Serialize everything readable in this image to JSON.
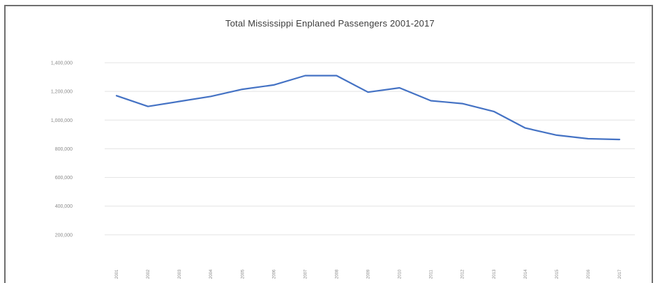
{
  "chart_data": {
    "type": "line",
    "title": "Total Mississippi Enplaned Passengers 2001-2017",
    "xlabel": "",
    "ylabel": "",
    "ylim": [
      0,
      1400000
    ],
    "y_ticks": [
      "200,000",
      "400,000",
      "600,000",
      "800,000",
      "1,000,000",
      "1,200,000",
      "1,400,000"
    ],
    "y_tick_values": [
      200000,
      400000,
      600000,
      800000,
      1000000,
      1200000,
      1400000
    ],
    "x": [
      "2001",
      "2002",
      "2003",
      "2004",
      "2005",
      "2006",
      "2007",
      "2008",
      "2009",
      "2010",
      "2011",
      "2012",
      "2013",
      "2014",
      "2015",
      "2016",
      "2017"
    ],
    "series": [
      {
        "values": [
          1170000,
          1095000,
          1130000,
          1165000,
          1215000,
          1245000,
          1310000,
          1310000,
          1195000,
          1225000,
          1135000,
          1115000,
          1060000,
          945000,
          895000,
          870000,
          865000
        ]
      }
    ],
    "grid": true,
    "legend": "none",
    "line_color": "#4472c4",
    "grid_color": "#e3e3e3"
  }
}
